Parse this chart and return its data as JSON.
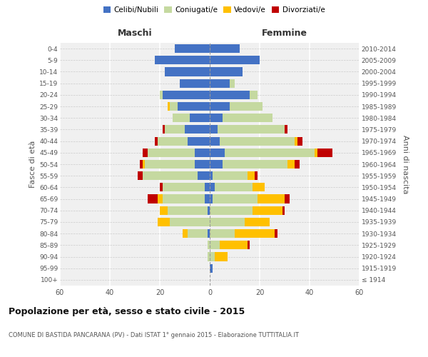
{
  "age_groups": [
    "100+",
    "95-99",
    "90-94",
    "85-89",
    "80-84",
    "75-79",
    "70-74",
    "65-69",
    "60-64",
    "55-59",
    "50-54",
    "45-49",
    "40-44",
    "35-39",
    "30-34",
    "25-29",
    "20-24",
    "15-19",
    "10-14",
    "5-9",
    "0-4"
  ],
  "birth_years": [
    "≤ 1914",
    "1915-1919",
    "1920-1924",
    "1925-1929",
    "1930-1934",
    "1935-1939",
    "1940-1944",
    "1945-1949",
    "1950-1954",
    "1955-1959",
    "1960-1964",
    "1965-1969",
    "1970-1974",
    "1975-1979",
    "1980-1984",
    "1985-1989",
    "1990-1994",
    "1995-1999",
    "2000-2004",
    "2005-2009",
    "2010-2014"
  ],
  "males": {
    "celibi": [
      0,
      0,
      0,
      0,
      1,
      0,
      1,
      2,
      2,
      5,
      6,
      6,
      9,
      10,
      8,
      13,
      19,
      12,
      18,
      22,
      14
    ],
    "coniugati": [
      0,
      0,
      1,
      1,
      8,
      16,
      16,
      17,
      17,
      22,
      20,
      19,
      12,
      8,
      7,
      3,
      1,
      0,
      0,
      0,
      0
    ],
    "vedovi": [
      0,
      0,
      0,
      0,
      2,
      5,
      3,
      2,
      0,
      0,
      1,
      0,
      0,
      0,
      0,
      1,
      0,
      0,
      0,
      0,
      0
    ],
    "divorziati": [
      0,
      0,
      0,
      0,
      0,
      0,
      0,
      4,
      1,
      2,
      1,
      2,
      1,
      1,
      0,
      0,
      0,
      0,
      0,
      0,
      0
    ]
  },
  "females": {
    "nubili": [
      0,
      1,
      0,
      0,
      0,
      0,
      0,
      1,
      2,
      1,
      5,
      6,
      4,
      3,
      5,
      8,
      16,
      8,
      13,
      20,
      12
    ],
    "coniugate": [
      0,
      0,
      2,
      4,
      10,
      14,
      17,
      18,
      15,
      14,
      26,
      36,
      30,
      27,
      20,
      13,
      3,
      2,
      0,
      0,
      0
    ],
    "vedove": [
      0,
      0,
      5,
      11,
      16,
      10,
      12,
      11,
      5,
      3,
      3,
      1,
      1,
      0,
      0,
      0,
      0,
      0,
      0,
      0,
      0
    ],
    "divorziate": [
      0,
      0,
      0,
      1,
      1,
      0,
      1,
      2,
      0,
      1,
      2,
      6,
      2,
      1,
      0,
      0,
      0,
      0,
      0,
      0,
      0
    ]
  },
  "colors": {
    "celibi": "#4472c4",
    "coniugati": "#c5d9a0",
    "vedovi": "#ffc000",
    "divorziati": "#c00000"
  },
  "xlim": 60,
  "title": "Popolazione per età, sesso e stato civile - 2015",
  "subtitle": "COMUNE DI BASTIDA PANCARANA (PV) - Dati ISTAT 1° gennaio 2015 - Elaborazione TUTTITALIA.IT",
  "ylabel_left": "Fasce di età",
  "ylabel_right": "Anni di nascita",
  "legend_labels": [
    "Celibi/Nubili",
    "Coniugati/e",
    "Vedovi/e",
    "Divorziati/e"
  ],
  "bg_color": "#f0f0f0",
  "bar_height": 0.75
}
